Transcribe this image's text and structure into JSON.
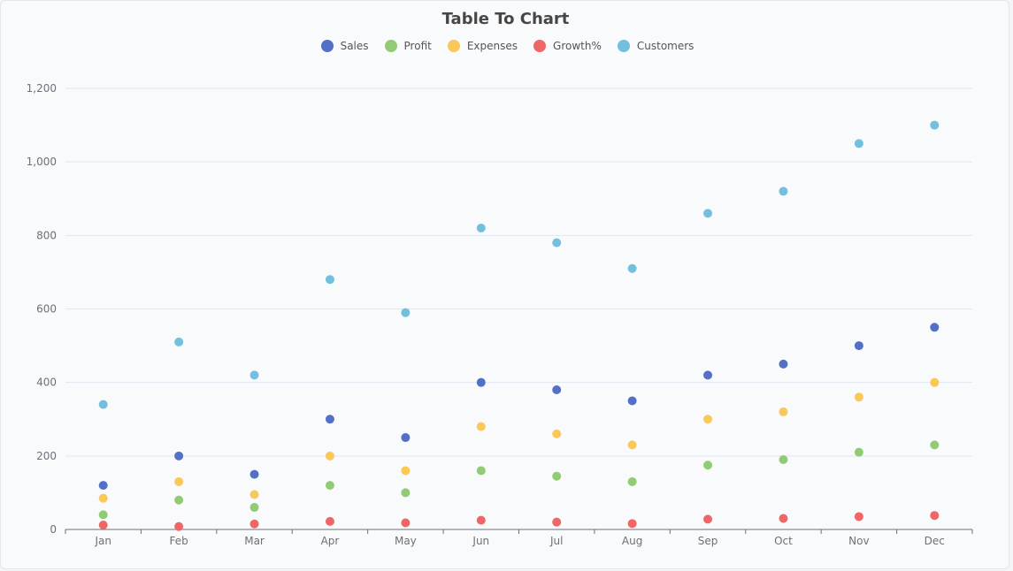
{
  "chart_data": {
    "type": "scatter",
    "title": "Table To Chart",
    "categories": [
      "Jan",
      "Feb",
      "Mar",
      "Apr",
      "May",
      "Jun",
      "Jul",
      "Aug",
      "Sep",
      "Oct",
      "Nov",
      "Dec"
    ],
    "ylim": [
      0,
      1200
    ],
    "yticks": [
      0,
      200,
      400,
      600,
      800,
      1000,
      1200
    ],
    "ytick_labels": [
      "0",
      "200",
      "400",
      "600",
      "800",
      "1,000",
      "1,200"
    ],
    "grid": true,
    "legend_position": "top",
    "series": [
      {
        "name": "Sales",
        "color": "#5470c6",
        "values": [
          120,
          200,
          150,
          300,
          250,
          400,
          380,
          350,
          420,
          450,
          500,
          550
        ]
      },
      {
        "name": "Profit",
        "color": "#91cc75",
        "values": [
          40,
          80,
          60,
          120,
          100,
          160,
          145,
          130,
          175,
          190,
          210,
          230
        ]
      },
      {
        "name": "Expenses",
        "color": "#fac858",
        "values": [
          85,
          130,
          95,
          200,
          160,
          280,
          260,
          230,
          300,
          320,
          360,
          400
        ]
      },
      {
        "name": "Growth%",
        "color": "#ee6666",
        "values": [
          12,
          8,
          15,
          22,
          18,
          25,
          20,
          16,
          28,
          30,
          35,
          38
        ]
      },
      {
        "name": "Customers",
        "color": "#73c0de",
        "values": [
          340,
          510,
          420,
          680,
          590,
          820,
          780,
          710,
          860,
          920,
          1050,
          1100
        ]
      }
    ]
  }
}
